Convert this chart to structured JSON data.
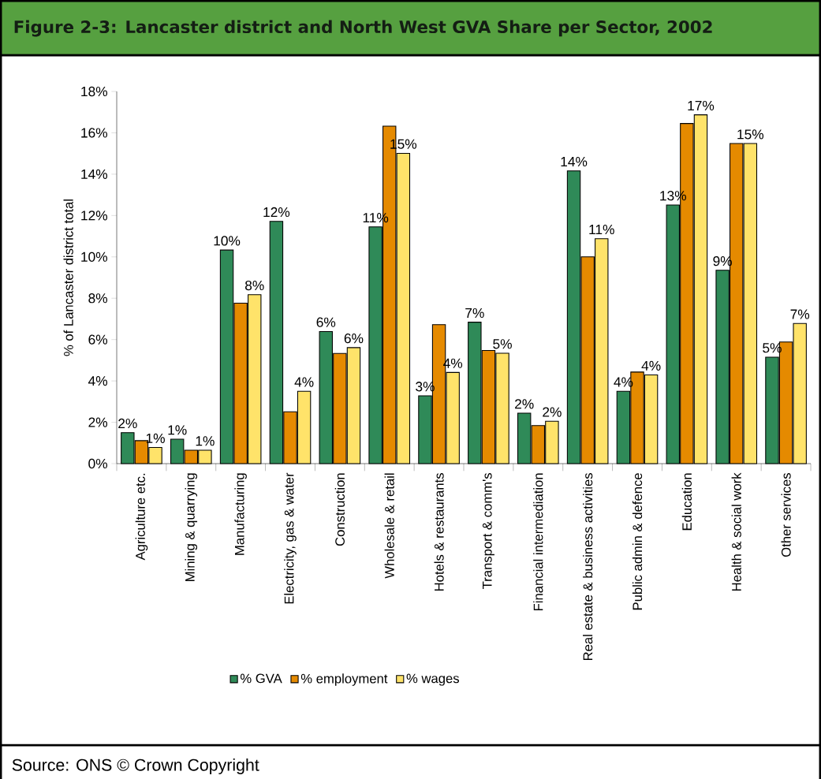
{
  "chart_data": {
    "type": "bar",
    "title": "Figure 2-3: Lancaster district and North West GVA Share per Sector, 2002",
    "ylabel": "% of Lancaster district total",
    "categories": [
      "Agriculture etc.",
      "Mining & quarrying",
      "Manufacturing",
      "Electricity, gas & water",
      "Construction",
      "Wholesale & retail",
      "Hotels & restaurants",
      "Transport & comm's",
      "Financial intermediation",
      "Real estate & business activities",
      "Public admin & defence",
      "Education",
      "Health & social work",
      "Other services"
    ],
    "series": [
      {
        "name": "% GVA",
        "color": "#2f8a58",
        "values": [
          1.5,
          1.18,
          10.33,
          11.72,
          6.39,
          11.45,
          3.28,
          6.84,
          2.44,
          14.16,
          3.5,
          12.51,
          9.35,
          5.15
        ],
        "value_labels": [
          "2%",
          "1%",
          "10%",
          "12%",
          "6%",
          "11%",
          "3%",
          "7%",
          "2%",
          "14%",
          "4%",
          "13%",
          "9%",
          "5%"
        ]
      },
      {
        "name": "% employment",
        "color": "#e58a00",
        "values": [
          1.11,
          0.65,
          7.76,
          2.51,
          5.33,
          16.32,
          6.72,
          5.47,
          1.84,
          10.0,
          4.43,
          16.45,
          15.48,
          5.88
        ]
      },
      {
        "name": "% wages",
        "color": "#ffe36a",
        "values": [
          0.78,
          0.65,
          8.17,
          3.5,
          5.61,
          15.01,
          4.41,
          5.34,
          2.05,
          10.88,
          4.29,
          16.87,
          15.48,
          6.78
        ],
        "value_labels": [
          "1%",
          "1%",
          "8%",
          "4%",
          "6%",
          "15%",
          "4%",
          "5%",
          "2%",
          "11%",
          "4%",
          "17%",
          "15%",
          "7%"
        ]
      }
    ],
    "ylim": [
      0,
      18
    ],
    "yticks": [
      {
        "value": 0,
        "label": "0%"
      },
      {
        "value": 2,
        "label": "2%"
      },
      {
        "value": 4,
        "label": "4%"
      },
      {
        "value": 6,
        "label": "6%"
      },
      {
        "value": 8,
        "label": "8%"
      },
      {
        "value": 10,
        "label": "10%"
      },
      {
        "value": 12,
        "label": "12%"
      },
      {
        "value": 14,
        "label": "14%"
      },
      {
        "value": 16,
        "label": "16%"
      },
      {
        "value": 18,
        "label": "18%"
      }
    ],
    "legend": "bottom",
    "annotations": [
      "Source: ONS © Crown Copyright"
    ]
  }
}
